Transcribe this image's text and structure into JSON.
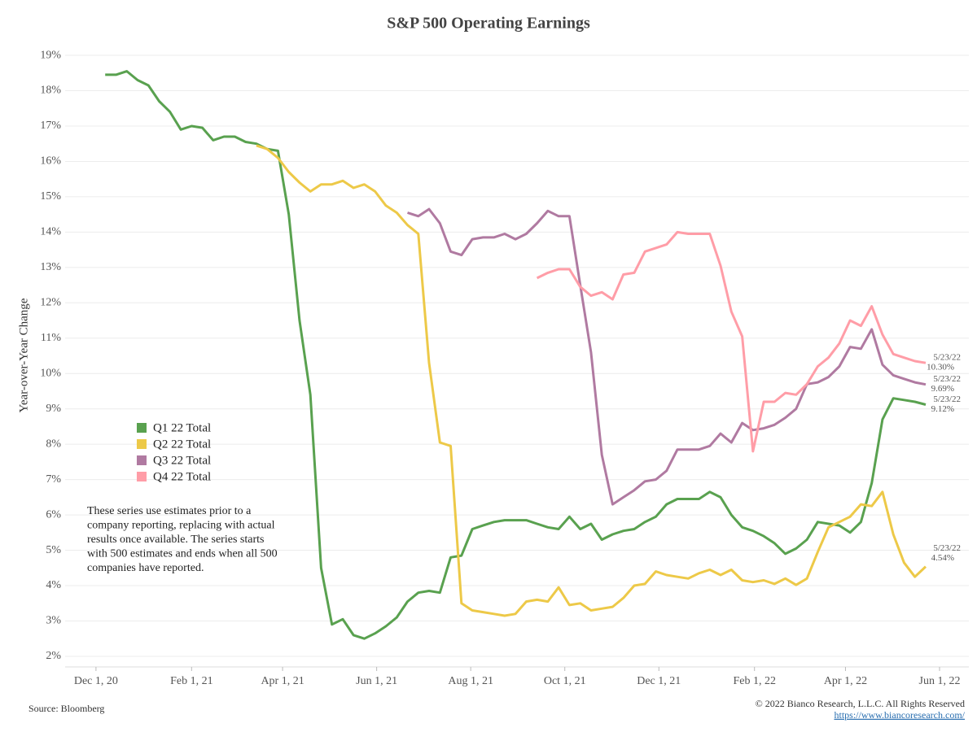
{
  "chart_data": {
    "type": "line",
    "title": "S&P 500 Operating Earnings",
    "y_axis_label": "Year-over-Year Change",
    "x": [
      "2020-12-07",
      "2020-12-14",
      "2020-12-21",
      "2020-12-28",
      "2021-01-04",
      "2021-01-11",
      "2021-01-18",
      "2021-01-25",
      "2021-02-01",
      "2021-02-08",
      "2021-02-15",
      "2021-02-22",
      "2021-03-01",
      "2021-03-08",
      "2021-03-15",
      "2021-03-22",
      "2021-03-29",
      "2021-04-05",
      "2021-04-12",
      "2021-04-19",
      "2021-04-26",
      "2021-05-03",
      "2021-05-10",
      "2021-05-17",
      "2021-05-24",
      "2021-05-31",
      "2021-06-07",
      "2021-06-14",
      "2021-06-21",
      "2021-06-28",
      "2021-07-05",
      "2021-07-12",
      "2021-07-19",
      "2021-07-26",
      "2021-08-02",
      "2021-08-09",
      "2021-08-16",
      "2021-08-23",
      "2021-08-30",
      "2021-09-06",
      "2021-09-13",
      "2021-09-20",
      "2021-09-27",
      "2021-10-04",
      "2021-10-11",
      "2021-10-18",
      "2021-10-25",
      "2021-11-01",
      "2021-11-08",
      "2021-11-15",
      "2021-11-22",
      "2021-11-29",
      "2021-12-06",
      "2021-12-13",
      "2021-12-20",
      "2021-12-27",
      "2022-01-03",
      "2022-01-10",
      "2022-01-17",
      "2022-01-24",
      "2022-01-31",
      "2022-02-07",
      "2022-02-14",
      "2022-02-21",
      "2022-02-28",
      "2022-03-07",
      "2022-03-14",
      "2022-03-21",
      "2022-03-28",
      "2022-04-04",
      "2022-04-11",
      "2022-04-18",
      "2022-04-25",
      "2022-05-02",
      "2022-05-09",
      "2022-05-16",
      "2022-05-23"
    ],
    "series": [
      {
        "name": "Q1 22 Total",
        "color": "#59a14f",
        "end_date": "5/23/22",
        "end_label": "9.12%",
        "values": [
          18.45,
          18.45,
          18.55,
          18.3,
          18.15,
          17.7,
          17.4,
          16.9,
          17.0,
          16.95,
          16.6,
          16.7,
          16.7,
          16.55,
          16.5,
          16.35,
          16.3,
          14.5,
          11.5,
          9.4,
          4.5,
          2.9,
          3.05,
          2.6,
          2.5,
          2.65,
          2.85,
          3.1,
          3.55,
          3.8,
          3.85,
          3.8,
          4.8,
          4.85,
          5.6,
          5.7,
          5.8,
          5.85,
          5.85,
          5.85,
          5.75,
          5.65,
          5.6,
          5.95,
          5.6,
          5.75,
          5.3,
          5.45,
          5.55,
          5.6,
          5.8,
          5.95,
          6.3,
          6.45,
          6.45,
          6.45,
          6.65,
          6.5,
          6.0,
          5.65,
          5.55,
          5.4,
          5.2,
          4.9,
          5.05,
          5.3,
          5.8,
          5.75,
          5.7,
          5.5,
          5.8,
          6.9,
          8.7,
          9.3,
          9.25,
          9.2,
          9.12
        ]
      },
      {
        "name": "Q2 22 Total",
        "color": "#edc948",
        "end_date": "5/23/22",
        "end_label": "4.54%",
        "values": [
          null,
          null,
          null,
          null,
          null,
          null,
          null,
          null,
          null,
          null,
          null,
          null,
          null,
          null,
          16.45,
          16.35,
          16.1,
          15.7,
          15.4,
          15.15,
          15.35,
          15.35,
          15.45,
          15.25,
          15.35,
          15.15,
          14.75,
          14.55,
          14.2,
          13.95,
          10.3,
          8.05,
          7.95,
          3.5,
          3.3,
          3.25,
          3.2,
          3.15,
          3.2,
          3.55,
          3.6,
          3.55,
          3.95,
          3.45,
          3.5,
          3.3,
          3.35,
          3.4,
          3.65,
          4.0,
          4.05,
          4.4,
          4.3,
          4.25,
          4.2,
          4.35,
          4.45,
          4.3,
          4.45,
          4.15,
          4.1,
          4.15,
          4.05,
          4.2,
          4.02,
          4.2,
          4.95,
          5.65,
          5.8,
          5.95,
          6.3,
          6.25,
          6.65,
          5.45,
          4.65,
          4.25,
          4.54
        ]
      },
      {
        "name": "Q3 22 Total",
        "color": "#b07aa1",
        "end_date": "5/23/22",
        "end_label": "9.69%",
        "values": [
          null,
          null,
          null,
          null,
          null,
          null,
          null,
          null,
          null,
          null,
          null,
          null,
          null,
          null,
          null,
          null,
          null,
          null,
          null,
          null,
          null,
          null,
          null,
          null,
          null,
          null,
          null,
          null,
          14.55,
          14.45,
          14.65,
          14.25,
          13.45,
          13.35,
          13.8,
          13.85,
          13.85,
          13.95,
          13.8,
          13.95,
          14.25,
          14.6,
          14.45,
          14.45,
          12.5,
          10.6,
          7.7,
          6.3,
          6.5,
          6.7,
          6.95,
          7.0,
          7.25,
          7.85,
          7.85,
          7.85,
          7.95,
          8.3,
          8.05,
          8.6,
          8.4,
          8.45,
          8.55,
          8.75,
          9.0,
          9.7,
          9.75,
          9.9,
          10.2,
          10.75,
          10.7,
          11.25,
          10.25,
          9.95,
          9.85,
          9.75,
          9.69
        ]
      },
      {
        "name": "Q4 22 Total",
        "color": "#ff9da7",
        "end_date": "5/23/22",
        "end_label": "10.30%",
        "values": [
          null,
          null,
          null,
          null,
          null,
          null,
          null,
          null,
          null,
          null,
          null,
          null,
          null,
          null,
          null,
          null,
          null,
          null,
          null,
          null,
          null,
          null,
          null,
          null,
          null,
          null,
          null,
          null,
          null,
          null,
          null,
          null,
          null,
          null,
          null,
          null,
          null,
          null,
          null,
          null,
          12.7,
          12.85,
          12.95,
          12.95,
          12.45,
          12.2,
          12.3,
          12.1,
          12.8,
          12.85,
          13.45,
          13.55,
          13.65,
          14.0,
          13.95,
          13.95,
          13.95,
          13.05,
          11.75,
          11.05,
          7.8,
          9.2,
          9.2,
          9.45,
          9.4,
          9.7,
          10.2,
          10.45,
          10.85,
          11.5,
          11.35,
          11.9,
          11.1,
          10.55,
          10.45,
          10.35,
          10.3
        ]
      }
    ],
    "xlim": [
      "2020-11-11",
      "2022-06-20"
    ],
    "xticks": [
      {
        "value": "2020-12-01",
        "label": "Dec 1, 20"
      },
      {
        "value": "2021-02-01",
        "label": "Feb 1, 21"
      },
      {
        "value": "2021-04-01",
        "label": "Apr 1, 21"
      },
      {
        "value": "2021-06-01",
        "label": "Jun 1, 21"
      },
      {
        "value": "2021-08-01",
        "label": "Aug 1, 21"
      },
      {
        "value": "2021-10-01",
        "label": "Oct 1, 21"
      },
      {
        "value": "2021-12-01",
        "label": "Dec 1, 21"
      },
      {
        "value": "2022-02-01",
        "label": "Feb 1, 22"
      },
      {
        "value": "2022-04-01",
        "label": "Apr 1, 22"
      },
      {
        "value": "2022-06-01",
        "label": "Jun 1, 22"
      }
    ],
    "ylim": [
      1.7,
      19.3
    ],
    "yticks": [
      {
        "value": 2,
        "label": "2%"
      },
      {
        "value": 3,
        "label": "3%"
      },
      {
        "value": 4,
        "label": "4%"
      },
      {
        "value": 5,
        "label": "5%"
      },
      {
        "value": 6,
        "label": "6%"
      },
      {
        "value": 7,
        "label": "7%"
      },
      {
        "value": 8,
        "label": "8%"
      },
      {
        "value": 9,
        "label": "9%"
      },
      {
        "value": 10,
        "label": "10%"
      },
      {
        "value": 11,
        "label": "11%"
      },
      {
        "value": 12,
        "label": "12%"
      },
      {
        "value": 13,
        "label": "13%"
      },
      {
        "value": 14,
        "label": "14%"
      },
      {
        "value": 15,
        "label": "15%"
      },
      {
        "value": 16,
        "label": "16%"
      },
      {
        "value": 17,
        "label": "17%"
      },
      {
        "value": 18,
        "label": "18%"
      },
      {
        "value": 19,
        "label": "19%"
      }
    ],
    "grid": true,
    "legend_position": "center-left",
    "annotation": [
      "These series use estimates prior to a",
      "company reporting, replacing with actual",
      "results once available. The series starts",
      "with 500 estimates and ends when all 500",
      "companies have reported."
    ],
    "source": "Source: Bloomberg",
    "copyright": "© 2022 Bianco Research, L.L.C. All Rights Reserved",
    "url": "https://www.biancoresearch.com/"
  }
}
